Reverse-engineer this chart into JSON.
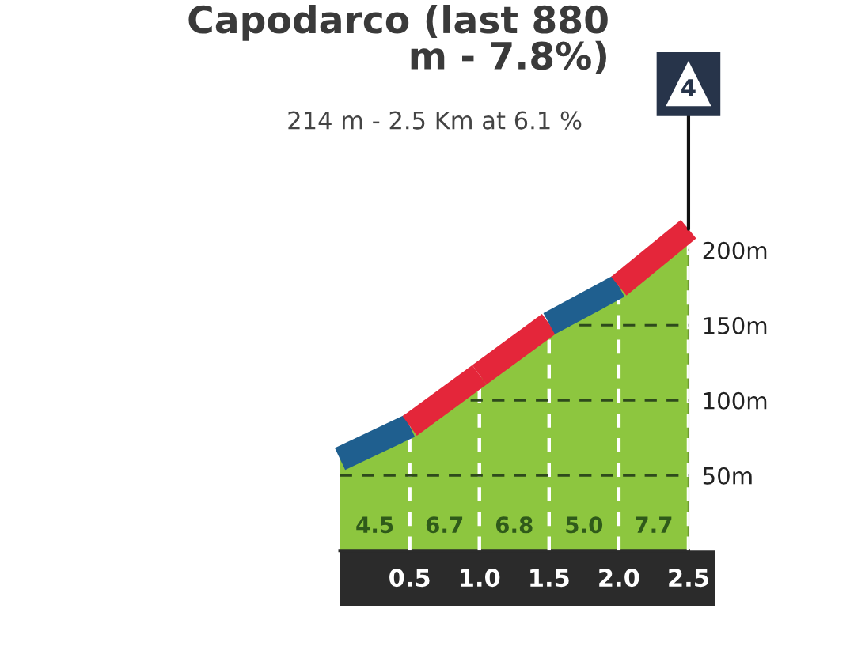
{
  "chart_data": {
    "type": "area",
    "title": "Capodarco (last 880\nm - 7.8%)",
    "subtitle": "214 m - 2.5 Km at 6.1 %",
    "x": [
      0,
      0.5,
      1.0,
      1.5,
      2.0,
      2.5
    ],
    "series": [
      {
        "color": "#8dc63f",
        "values": [
          61,
          83,
          117,
          151,
          176,
          214
        ]
      },
      {
        "type": "line",
        "x": [
          0,
          0.5
        ],
        "color": "#1f5f8f",
        "values": [
          61,
          83
        ]
      },
      {
        "type": "line",
        "x": [
          0.5,
          1.0
        ],
        "color": "#e4263a",
        "values": [
          83,
          117
        ]
      },
      {
        "type": "line",
        "x": [
          1.0,
          1.5
        ],
        "color": "#e4263a",
        "values": [
          117,
          151
        ]
      },
      {
        "type": "line",
        "x": [
          1.5,
          2.0
        ],
        "color": "#1f5f8f",
        "values": [
          151,
          176
        ]
      },
      {
        "type": "line",
        "x": [
          2.0,
          2.5
        ],
        "color": "#e4263a",
        "values": [
          176,
          214
        ]
      }
    ],
    "xlim": [
      0,
      2.5
    ],
    "xticks": [
      0.5,
      {
        "value": 1.0,
        "label": "1.0"
      },
      1.5,
      {
        "value": 2.0,
        "label": "2.0"
      },
      2.5
    ],
    "ylim": [
      0,
      220
    ],
    "yticks": [
      {
        "value": 50,
        "label": "50m"
      },
      {
        "value": 100,
        "label": "100m"
      },
      {
        "value": 150,
        "label": "150m"
      },
      {
        "value": 200,
        "label": "200m"
      }
    ],
    "grid": true,
    "annotations": [
      {
        "text": "4",
        "x": 2.5,
        "y": 214
      },
      {
        "text": "4.5",
        "x": 0.25,
        "y": 0
      },
      {
        "text": "6.7",
        "x": 0.75,
        "y": 0
      },
      {
        "text": "6.8",
        "x": 1.25,
        "y": 0
      },
      {
        "text": "5.0",
        "x": 1.75,
        "y": 0
      },
      {
        "text": "7.7",
        "x": 2.25,
        "y": 0
      }
    ]
  }
}
